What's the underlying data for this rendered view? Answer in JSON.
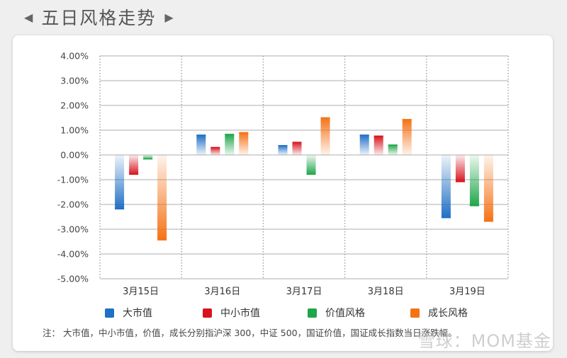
{
  "header": {
    "title": "五日风格走势",
    "prev_icon": "◀",
    "next_icon": "▶"
  },
  "chart_data": {
    "type": "bar",
    "title": "五日风格走势",
    "xlabel": "",
    "ylabel": "",
    "ylim": [
      -5,
      4
    ],
    "yticks": [
      "4.00%",
      "3.00%",
      "2.00%",
      "1.00%",
      "0.00%",
      "-1.00%",
      "-2.00%",
      "-3.00%",
      "-4.00%",
      "-5.00%"
    ],
    "categories": [
      "3月15日",
      "3月16日",
      "3月17日",
      "3月18日",
      "3月19日"
    ],
    "grid": true,
    "legend_position": "bottom",
    "series": [
      {
        "name": "大市值",
        "color": "#1f6fc5",
        "values": [
          -2.2,
          0.82,
          0.4,
          0.82,
          -2.55
        ]
      },
      {
        "name": "中小市值",
        "color": "#d7141e",
        "values": [
          -0.8,
          0.32,
          0.53,
          0.78,
          -1.1
        ]
      },
      {
        "name": "价值风格",
        "color": "#1fa64a",
        "values": [
          -0.18,
          0.85,
          -0.8,
          0.42,
          -2.07
        ]
      },
      {
        "name": "成长风格",
        "color": "#f47216",
        "values": [
          -3.45,
          0.92,
          1.52,
          1.45,
          -2.7
        ]
      }
    ]
  },
  "legend": [
    {
      "label": "大市值",
      "color": "#1f6fc5"
    },
    {
      "label": "中小市值",
      "color": "#d7141e"
    },
    {
      "label": "价值风格",
      "color": "#1fa64a"
    },
    {
      "label": "成长风格",
      "color": "#f47216"
    }
  ],
  "note": "注： 大市值，中小市值，价值，成长分别指沪深 300，中证 500，国证价值，国证成长指数当日涨跌幅。",
  "watermark": "雪球：MOM基金"
}
